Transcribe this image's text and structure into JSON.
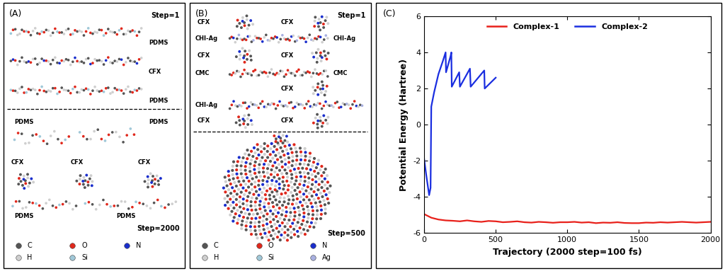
{
  "panel_a": {
    "label": "(A)",
    "top_step": "Step=1",
    "bottom_step": "Step=2000",
    "top_rows": [
      "PDMS",
      "CFX",
      "PDMS"
    ],
    "bottom_groups": [
      [
        "PDMS",
        "PDMS"
      ],
      [
        "CFX",
        "CFX",
        "CFX"
      ],
      [
        "PDMS",
        "PDMS"
      ]
    ],
    "atoms": [
      {
        "symbol": "C",
        "color": "#555555"
      },
      {
        "symbol": "O",
        "color": "#e0281c"
      },
      {
        "symbol": "N",
        "color": "#1a2ecc"
      },
      {
        "symbol": "H",
        "color": "#cfcfcf"
      },
      {
        "symbol": "Si",
        "color": "#a0c8d8"
      }
    ]
  },
  "panel_b": {
    "label": "(B)",
    "top_step": "Step=1",
    "bottom_step": "Step=500",
    "top_rows": [
      [
        "CFX",
        "CFX"
      ],
      [
        "CHI-Ag",
        "CHI-Ag"
      ],
      [
        "CFX",
        "CFX"
      ],
      [
        "CMC",
        "CMC"
      ],
      [
        "CFX"
      ],
      [
        "CHI-Ag"
      ],
      [
        "CFX",
        "CFX"
      ]
    ],
    "atoms": [
      {
        "symbol": "C",
        "color": "#555555"
      },
      {
        "symbol": "O",
        "color": "#e0281c"
      },
      {
        "symbol": "N",
        "color": "#1a2ecc"
      },
      {
        "symbol": "H",
        "color": "#cfcfcf"
      },
      {
        "symbol": "Si",
        "color": "#a0c8d8"
      },
      {
        "symbol": "Ag",
        "color": "#a8b0e0"
      }
    ]
  },
  "chart_data": {
    "label": "(C)",
    "type": "line",
    "xlabel": "Trajectory (2000 step=100 fs)",
    "ylabel": "Potential Energy (Hartree)",
    "xlim": [
      0,
      2000
    ],
    "xticks": [
      0,
      500,
      1000,
      1500,
      2000
    ],
    "ylim": [
      -6,
      6
    ],
    "yticks": [
      -6,
      -4,
      -2,
      0,
      2,
      4,
      6
    ],
    "legend": "upper center",
    "series": [
      {
        "name": "Complex-1",
        "color": "#e8201a",
        "x": [
          0,
          50,
          100,
          150,
          200,
          250,
          300,
          350,
          400,
          450,
          500,
          550,
          600,
          650,
          700,
          750,
          800,
          850,
          900,
          950,
          1000,
          1050,
          1100,
          1150,
          1200,
          1250,
          1300,
          1350,
          1400,
          1450,
          1500,
          1550,
          1600,
          1650,
          1700,
          1750,
          1800,
          1850,
          1900,
          1950,
          2000
        ],
        "values": [
          -4.95,
          -5.15,
          -5.25,
          -5.3,
          -5.32,
          -5.35,
          -5.3,
          -5.35,
          -5.38,
          -5.33,
          -5.35,
          -5.4,
          -5.38,
          -5.35,
          -5.4,
          -5.42,
          -5.38,
          -5.4,
          -5.43,
          -5.4,
          -5.4,
          -5.38,
          -5.42,
          -5.4,
          -5.45,
          -5.42,
          -5.43,
          -5.4,
          -5.44,
          -5.45,
          -5.45,
          -5.42,
          -5.43,
          -5.4,
          -5.42,
          -5.4,
          -5.38,
          -5.4,
          -5.42,
          -5.4,
          -5.38
        ]
      },
      {
        "name": "Complex-2",
        "color": "#1a2ee0",
        "x": [
          0,
          15,
          35,
          45,
          50,
          70,
          100,
          130,
          150,
          153,
          185,
          190,
          193,
          245,
          250,
          320,
          325,
          420,
          423,
          500
        ],
        "values": [
          -1.9,
          -2.8,
          -3.9,
          -3.5,
          1.0,
          1.8,
          2.8,
          3.5,
          4.0,
          2.9,
          3.8,
          4.0,
          2.1,
          2.9,
          2.1,
          3.1,
          2.1,
          3.0,
          2.0,
          2.6
        ]
      }
    ]
  }
}
